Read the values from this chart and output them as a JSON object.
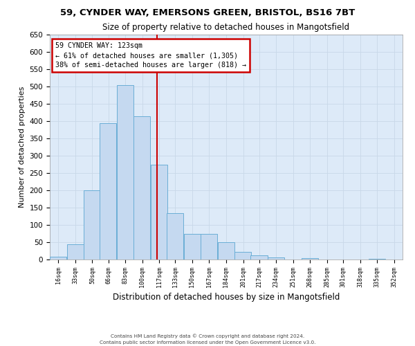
{
  "title1": "59, CYNDER WAY, EMERSONS GREEN, BRISTOL, BS16 7BT",
  "title2": "Size of property relative to detached houses in Mangotsfield",
  "xlabel": "Distribution of detached houses by size in Mangotsfield",
  "ylabel": "Number of detached properties",
  "footer1": "Contains HM Land Registry data © Crown copyright and database right 2024.",
  "footer2": "Contains public sector information licensed under the Open Government Licence v3.0.",
  "annotation_line1": "59 CYNDER WAY: 123sqm",
  "annotation_line2": "← 61% of detached houses are smaller (1,305)",
  "annotation_line3": "38% of semi-detached houses are larger (818) →",
  "property_size": 123,
  "bin_starts": [
    16,
    33,
    50,
    66,
    83,
    100,
    117,
    133,
    150,
    167,
    184,
    201,
    217,
    234,
    251,
    268,
    285,
    301,
    318,
    335,
    352
  ],
  "bin_width": 17,
  "bar_heights": [
    8,
    45,
    200,
    395,
    505,
    415,
    275,
    135,
    75,
    75,
    50,
    22,
    12,
    6,
    0,
    5,
    0,
    0,
    0,
    2
  ],
  "bar_color": "#c5d9f0",
  "bar_edge_color": "#6aaed6",
  "vline_color": "#cc0000",
  "vline_x": 123,
  "annotation_box_color": "#cc0000",
  "grid_color": "#c8d8e8",
  "bg_color": "#ddeaf8",
  "ylim": [
    0,
    650
  ],
  "yticks": [
    0,
    50,
    100,
    150,
    200,
    250,
    300,
    350,
    400,
    450,
    500,
    550,
    600,
    650
  ]
}
